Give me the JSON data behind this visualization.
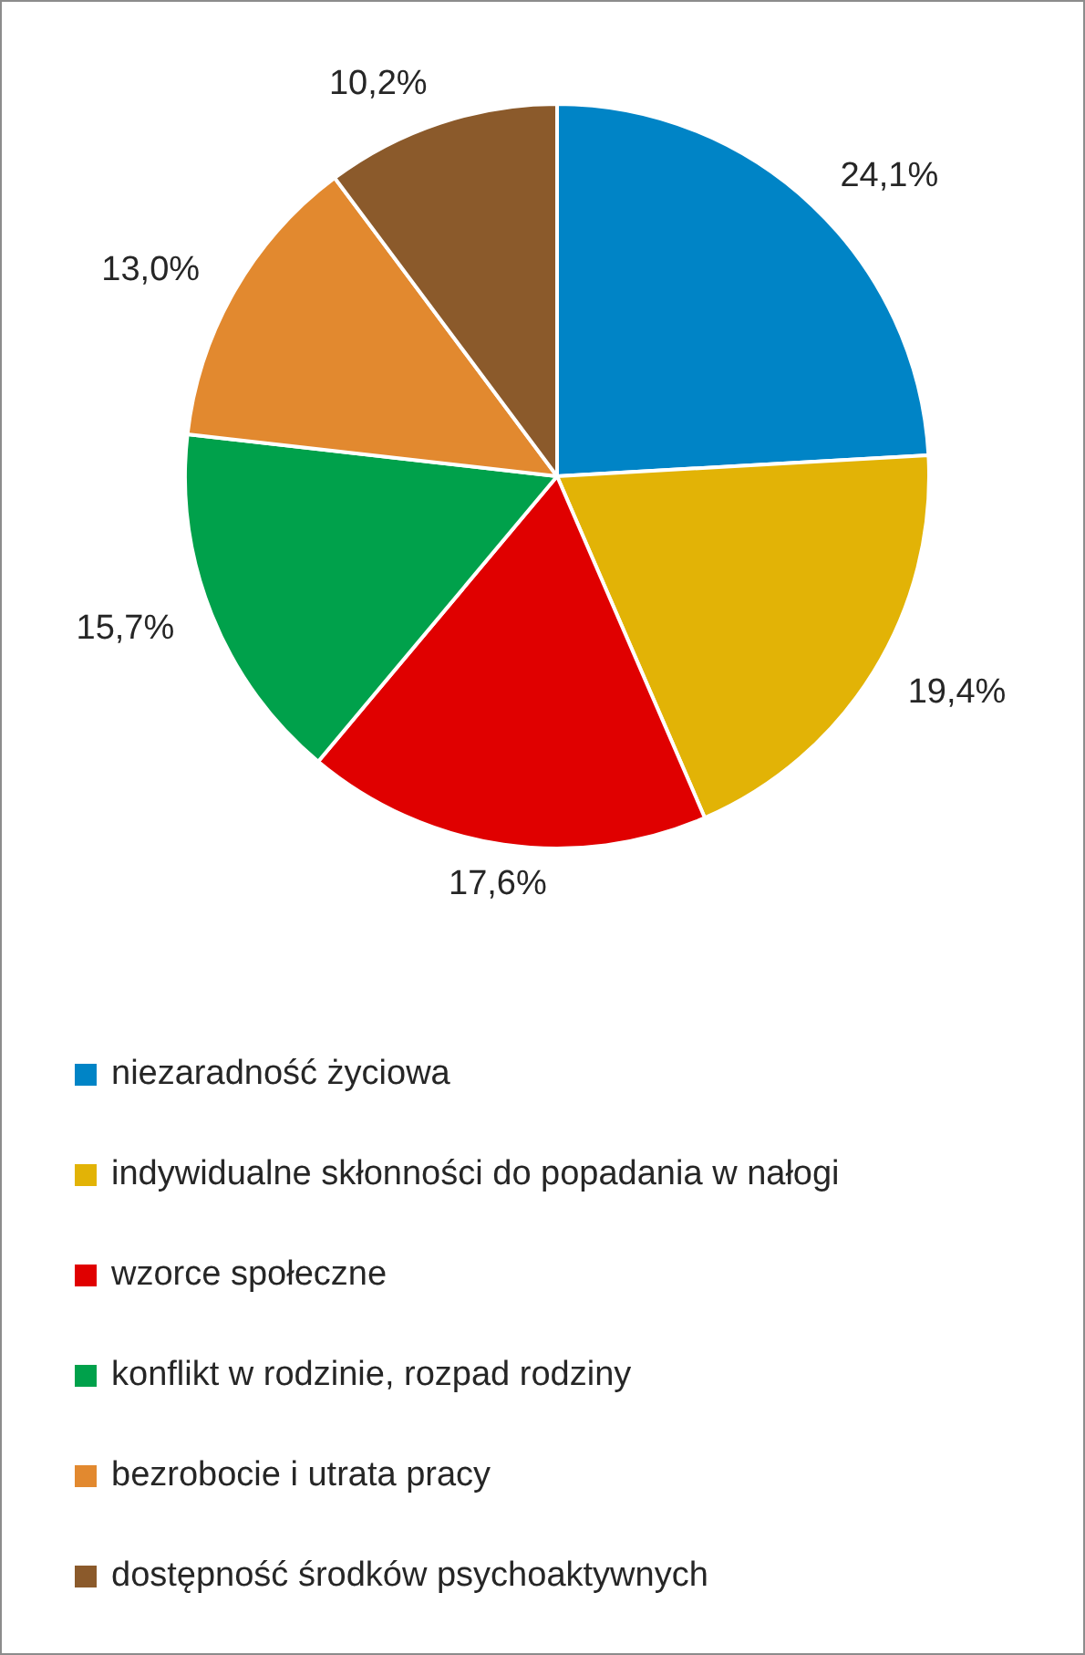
{
  "chart_data": {
    "type": "pie",
    "categories": [
      "niezaradność życiowa",
      "indywidualne skłonności do popadania w nałogi",
      "wzorce społeczne",
      "konflikt w rodzinie, rozpad rodziny",
      "bezrobocie i utrata pracy",
      "dostępność środków psychoaktywnych"
    ],
    "values": [
      24.1,
      19.4,
      17.6,
      15.7,
      13.0,
      10.2
    ],
    "value_labels": [
      "24,1%",
      "19,4%",
      "17,6%",
      "15,7%",
      "13,0%",
      "10,2%"
    ],
    "colors": [
      "#0084c6",
      "#e2b306",
      "#e00000",
      "#00a14b",
      "#e2892f",
      "#8b5a2b"
    ],
    "legend": "bottom"
  }
}
